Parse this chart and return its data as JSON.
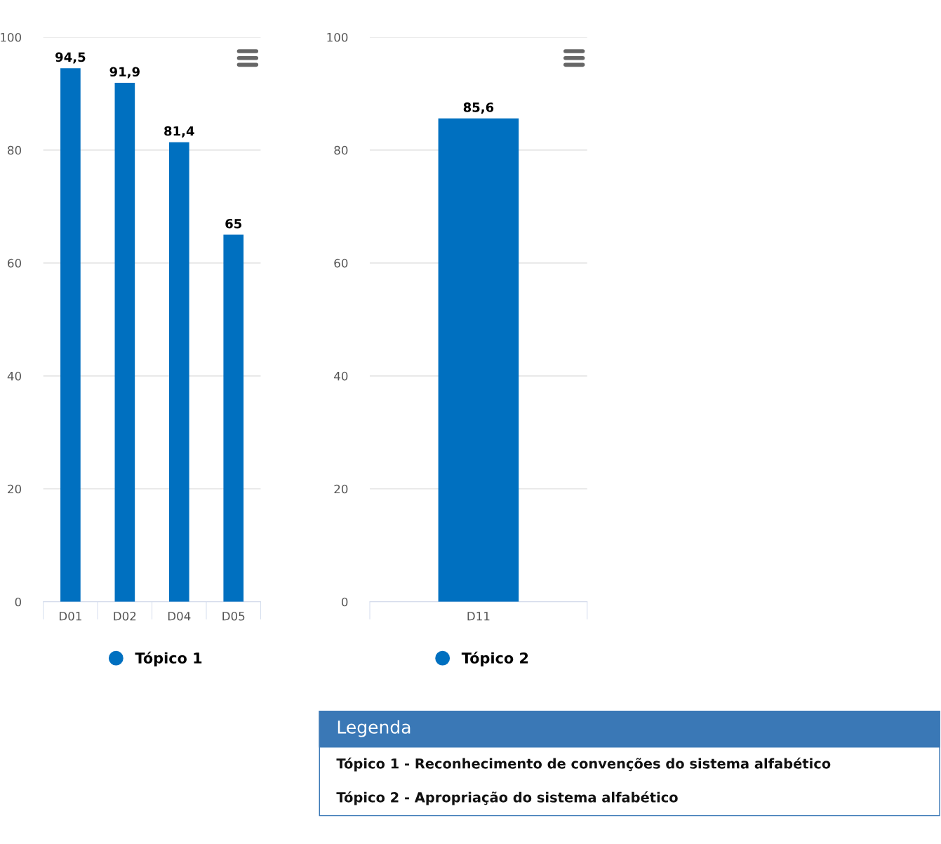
{
  "chart_data": [
    {
      "type": "bar",
      "categories": [
        "D01",
        "D02",
        "D04",
        "D05"
      ],
      "series": [
        {
          "name": "Tópico 1",
          "color": "#0070c0",
          "values": [
            94.5,
            91.9,
            81.4,
            65
          ],
          "value_labels": [
            "94,5",
            "91,9",
            "81,4",
            "65"
          ]
        }
      ],
      "ylim": [
        0,
        100
      ],
      "yticks": [
        0,
        20,
        40,
        60,
        80,
        100
      ],
      "grid": "y",
      "legend": "bottom",
      "marker": "circle"
    },
    {
      "type": "bar",
      "categories": [
        "D11"
      ],
      "series": [
        {
          "name": "Tópico 2",
          "color": "#0070c0",
          "values": [
            85.6
          ],
          "value_labels": [
            "85,6"
          ]
        }
      ],
      "ylim": [
        0,
        100
      ],
      "yticks": [
        0,
        20,
        40,
        60,
        80,
        100
      ],
      "grid": "y",
      "legend": "bottom",
      "marker": "circle"
    },
    {
      "type": "other",
      "title": "Legenda",
      "annotations": [
        "Tópico 1 - Reconhecimento de convenções do sistema alfabético",
        "Tópico 2 - Apropriação do sistema alfabético"
      ]
    }
  ]
}
